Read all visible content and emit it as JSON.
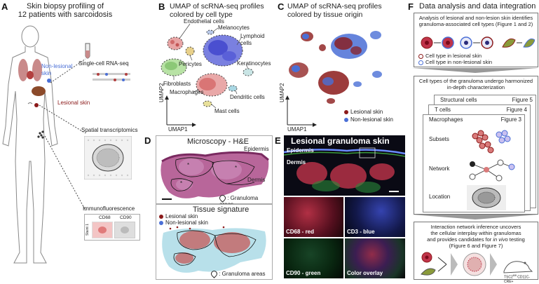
{
  "panelA": {
    "letter": "A",
    "title": "Skin biopsy profiling of\n12 patients with sarcoidosis",
    "nonlesional": "Non-lesional\nskin",
    "lesional": "Lesional skin",
    "scrna": "Single-cell RNA-seq",
    "spatial": "Spatial transcriptomics",
    "if_title": "Immunofluorescence",
    "if_stain1": "CD68",
    "if_stain2": "CD90",
    "if_side": "Staint 1"
  },
  "panelB": {
    "letter": "B",
    "title": "UMAP of scRNA-seq profiles\ncolored by cell type",
    "axis_x": "UMAP1",
    "axis_y": "UMAP2",
    "labels": {
      "endothelial": "Endothelial cells",
      "melanocytes": "Melanocytes",
      "lymphoid": "Lymphoid\ncells",
      "pericytes": "Pericytes",
      "keratinocytes": "Keratinocytes",
      "fibroblasts": "Fibroblasts",
      "macrophages": "Macrophages",
      "dendritic": "Dendritic cells",
      "mast": "Mast cells"
    }
  },
  "panelC": {
    "letter": "C",
    "title": "UMAP of scRNA-seq profiles\ncolored by tissue origin",
    "axis_x": "UMAP1",
    "axis_y": "UMAP2",
    "legend_lesional": "Lesional skin",
    "legend_nonlesional": "Non-lesional skin"
  },
  "panelD": {
    "letter": "D",
    "micro_title": "Microscopy - H&E",
    "epidermis": "Epidermis",
    "dermis": "Dermis",
    "granuloma_areas": ": Granuloma areas",
    "sig_title": "Tissue signature",
    "legend_lesional": "Lesional skin",
    "legend_nonlesional": "Non-lesional skin",
    "granuloma_areas2": ": Granuloma areas"
  },
  "panelE": {
    "letter": "E",
    "title": "Lesional granuloma skin",
    "epidermis": "Epidermis",
    "dermis": "Dermis",
    "cd68": "CD68 - red",
    "cd3": "CD3 - blue",
    "cd90": "CD90 - green",
    "overlay": "Color overlay"
  },
  "panelF": {
    "letter": "F",
    "title": "Data analysis and data integration",
    "box1_text": "Analysis of lesional and non-lesion skin identifies granuloma-associated cell types (Figure 1 and 2)",
    "box1_leg1": "Cell type in lesional skin",
    "box1_leg2": "Cell type in non-lesional skin",
    "box2_text": "Cell types of the granuloma undergo harmonized in-depth characterization",
    "card_structural": "Structural cells",
    "card_structural_fig": "Figure 5",
    "card_t": "T cells",
    "card_t_fig": "Figure 4",
    "card_macro": "Macrophages",
    "card_macro_fig": "Figure 3",
    "row_subsets": "Subsets",
    "row_network": "Network",
    "row_location": "Location",
    "box3_text_1": "Interaction network inference uncovers",
    "box3_text_2": "the cellular interplay within granulomas",
    "box3_text_3": "and provides candidates for",
    "box3_text_italic": "in vivo",
    "box3_text_4": "testing",
    "box3_text_5": "(Figure 6 and Figure 7)",
    "mouse_label": "TSC2",
    "mouse_sup": "fl/fl",
    "mouse_label2": "CD11C-CRE+"
  },
  "colors": {
    "lesional": "#8b1a1a",
    "nonlesional": "#4a6fd6",
    "grey_box": "#9a9a9a"
  }
}
